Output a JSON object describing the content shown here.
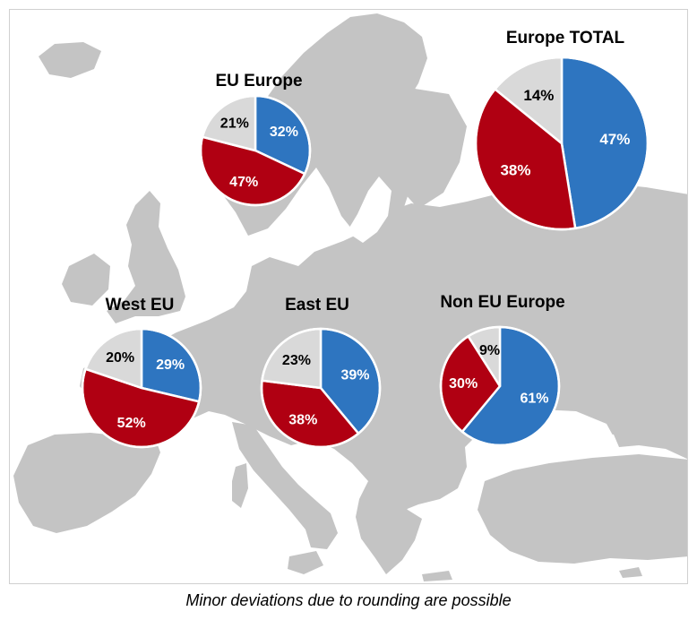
{
  "footnote": "Minor deviations due to rounding are possible",
  "colors": {
    "blue": "#2E75C0",
    "red": "#B00012",
    "grey": "#D9D9D9",
    "map": "#C4C4C4"
  },
  "chart_data": [
    {
      "type": "pie",
      "title": "EU Europe",
      "slices": [
        {
          "label": "32%",
          "value": 32,
          "color": "#2E75C0"
        },
        {
          "label": "47%",
          "value": 47,
          "color": "#B00012"
        },
        {
          "label": "21%",
          "value": 21,
          "color": "#D9D9D9"
        }
      ]
    },
    {
      "type": "pie",
      "title": "Europe TOTAL",
      "slices": [
        {
          "label": "47%",
          "value": 47,
          "color": "#2E75C0"
        },
        {
          "label": "38%",
          "value": 38,
          "color": "#B00012"
        },
        {
          "label": "14%",
          "value": 14,
          "color": "#D9D9D9"
        }
      ]
    },
    {
      "type": "pie",
      "title": "West EU",
      "slices": [
        {
          "label": "29%",
          "value": 29,
          "color": "#2E75C0"
        },
        {
          "label": "52%",
          "value": 52,
          "color": "#B00012"
        },
        {
          "label": "20%",
          "value": 20,
          "color": "#D9D9D9"
        }
      ]
    },
    {
      "type": "pie",
      "title": "East EU",
      "slices": [
        {
          "label": "39%",
          "value": 39,
          "color": "#2E75C0"
        },
        {
          "label": "38%",
          "value": 38,
          "color": "#B00012"
        },
        {
          "label": "23%",
          "value": 23,
          "color": "#D9D9D9"
        }
      ]
    },
    {
      "type": "pie",
      "title": "Non EU Europe",
      "slices": [
        {
          "label": "61%",
          "value": 61,
          "color": "#2E75C0"
        },
        {
          "label": "30%",
          "value": 30,
          "color": "#B00012"
        },
        {
          "label": "9%",
          "value": 9,
          "color": "#D9D9D9"
        }
      ]
    }
  ]
}
